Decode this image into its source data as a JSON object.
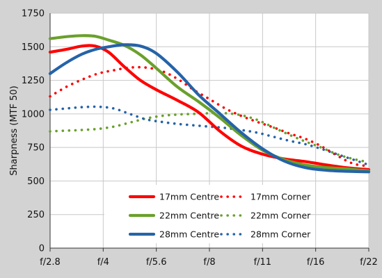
{
  "chart_data": {
    "type": "line",
    "title": "",
    "xlabel": "",
    "ylabel": "Sharpness (MTF 50)",
    "categories": [
      "f/2.8",
      "f/4",
      "f/5.6",
      "f/8",
      "f/11",
      "f/16",
      "f/22"
    ],
    "ylim": [
      0,
      1750
    ],
    "yticks": [
      0,
      250,
      500,
      750,
      1000,
      1250,
      1500,
      1750
    ],
    "grid": true,
    "legend_position": "bottom-center",
    "series": [
      {
        "name": "17mm Centre",
        "color": "#ff0000",
        "style": "solid",
        "x": [
          0,
          0.3,
          0.6,
          0.85,
          1.1,
          1.4,
          1.7,
          2.0,
          2.4,
          2.8,
          3.2,
          3.6,
          4.0,
          4.4,
          4.8,
          5.2,
          5.6,
          6.0
        ],
        "y": [
          1460,
          1480,
          1505,
          1505,
          1460,
          1350,
          1250,
          1180,
          1100,
          1010,
          870,
          760,
          700,
          665,
          645,
          620,
          598,
          585
        ]
      },
      {
        "name": "17mm Corner",
        "color": "#ff0000",
        "style": "dotted",
        "x": [
          0,
          0.3,
          0.6,
          0.9,
          1.2,
          1.5,
          1.8,
          2.1,
          2.4,
          2.7,
          3.0,
          3.3,
          3.6,
          3.9,
          4.2,
          4.5,
          4.8,
          5.1,
          5.4,
          5.7,
          6.0
        ],
        "y": [
          1130,
          1200,
          1255,
          1300,
          1325,
          1345,
          1345,
          1320,
          1260,
          1180,
          1110,
          1040,
          985,
          940,
          900,
          855,
          815,
          760,
          690,
          630,
          610
        ]
      },
      {
        "name": "22mm Centre",
        "color": "#6aa02c",
        "style": "solid",
        "x": [
          0,
          0.3,
          0.6,
          0.85,
          1.1,
          1.4,
          1.7,
          2.0,
          2.4,
          2.8,
          3.2,
          3.6,
          4.0,
          4.4,
          4.8,
          5.2,
          5.6,
          6.0
        ],
        "y": [
          1560,
          1575,
          1583,
          1578,
          1550,
          1510,
          1440,
          1340,
          1200,
          1090,
          970,
          840,
          730,
          660,
          620,
          600,
          590,
          575
        ]
      },
      {
        "name": "22mm Corner",
        "color": "#6aa02c",
        "style": "dotted",
        "x": [
          0,
          0.3,
          0.6,
          0.9,
          1.2,
          1.5,
          1.8,
          2.1,
          2.4,
          2.7,
          3.0,
          3.3,
          3.6,
          3.9,
          4.2,
          4.5,
          4.8,
          5.1,
          5.4,
          5.7,
          6.0
        ],
        "y": [
          870,
          875,
          880,
          888,
          905,
          935,
          965,
          985,
          995,
          1000,
          1005,
          1005,
          990,
          955,
          900,
          845,
          795,
          750,
          700,
          665,
          640
        ]
      },
      {
        "name": "28mm Centre",
        "color": "#2563a8",
        "style": "solid",
        "x": [
          0,
          0.3,
          0.6,
          0.85,
          1.1,
          1.4,
          1.7,
          2.0,
          2.4,
          2.8,
          3.2,
          3.6,
          4.0,
          4.4,
          4.8,
          5.2,
          5.6,
          6.0
        ],
        "y": [
          1300,
          1380,
          1445,
          1480,
          1500,
          1515,
          1505,
          1450,
          1310,
          1140,
          1000,
          860,
          740,
          650,
          600,
          580,
          572,
          568
        ]
      },
      {
        "name": "28mm Corner",
        "color": "#2563a8",
        "style": "dotted",
        "x": [
          0,
          0.3,
          0.6,
          0.9,
          1.2,
          1.5,
          1.8,
          2.1,
          2.4,
          2.7,
          3.0,
          3.3,
          3.6,
          3.9,
          4.2,
          4.5,
          4.8,
          5.1,
          5.4,
          5.7,
          6.0
        ],
        "y": [
          1030,
          1040,
          1050,
          1053,
          1040,
          1000,
          960,
          940,
          925,
          915,
          905,
          895,
          880,
          860,
          830,
          800,
          775,
          740,
          700,
          660,
          620
        ]
      }
    ]
  }
}
